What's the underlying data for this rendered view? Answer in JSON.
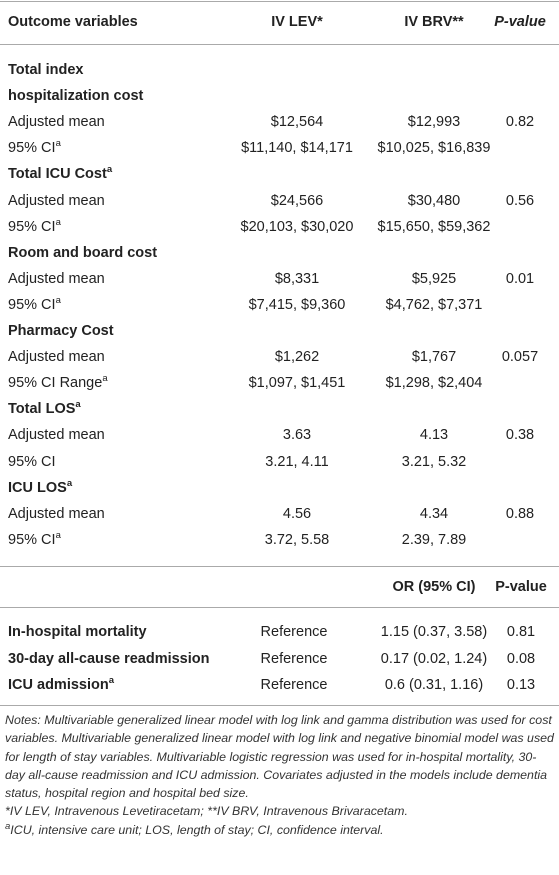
{
  "table": {
    "header": [
      "Outcome variables",
      "IV LEV*",
      "IV BRV**",
      "P-value"
    ],
    "sections": [
      {
        "title": "Total index hospitalization cost",
        "rows": [
          {
            "label": "Adjusted mean",
            "values": [
              "$12,564",
              "$12,993"
            ],
            "p": "0.82"
          },
          {
            "label": "95% CI",
            "label_sup": "a",
            "values": [
              "$11,140, $14,171",
              "$10,025, $16,839"
            ]
          }
        ]
      },
      {
        "title": "Total ICU Cost",
        "title_sup": "a",
        "rows": [
          {
            "label": "Adjusted mean",
            "values": [
              "$24,566",
              "$30,480"
            ],
            "p": "0.56"
          },
          {
            "label": "95% CI",
            "label_sup": "a",
            "values": [
              "$20,103, $30,020",
              "$15,650, $59,362"
            ]
          }
        ]
      },
      {
        "title": "Room and board cost",
        "rows": [
          {
            "label": "Adjusted mean",
            "values": [
              "$8,331",
              "$5,925"
            ],
            "p": "0.01"
          },
          {
            "label": "95% CI",
            "label_sup": "a",
            "values": [
              "$7,415, $9,360",
              "$4,762, $7,371"
            ]
          }
        ]
      },
      {
        "title": "Pharmacy Cost",
        "rows": [
          {
            "label": "Adjusted mean",
            "values": [
              "$1,262",
              "$1,767"
            ],
            "p": "0.057"
          },
          {
            "label": "95% CI Range",
            "label_sup": "a",
            "values": [
              "$1,097, $1,451",
              "$1,298, $2,404"
            ]
          }
        ]
      },
      {
        "title": "Total LOS",
        "title_sup": "a",
        "rows": [
          {
            "label": "Adjusted mean",
            "values": [
              "3.63",
              "4.13"
            ],
            "p": "0.38"
          },
          {
            "label": "95% CI",
            "values": [
              "3.21, 4.11",
              "3.21, 5.32"
            ]
          }
        ]
      },
      {
        "title": "ICU LOS",
        "title_sup": "a",
        "rows": [
          {
            "label": "Adjusted mean",
            "values": [
              "4.56",
              "4.34"
            ],
            "p": "0.88"
          },
          {
            "label": "95% CI",
            "label_sup": "a",
            "values": [
              "3.72, 5.58",
              "2.39, 7.89"
            ]
          }
        ]
      }
    ],
    "header2": [
      "OR (95% CI)",
      "P-value"
    ],
    "rows2": [
      {
        "label": "In-hospital mortality",
        "ref": "Reference",
        "or": "1.15 (0.37, 3.58)",
        "p": "0.81"
      },
      {
        "label": "30-day all-cause readmission",
        "ref": "Reference",
        "or": "0.17 (0.02, 1.24)",
        "p": "0.08"
      },
      {
        "label": "ICU admission",
        "label_sup": "a",
        "ref": "Reference",
        "or": "0.6 (0.31, 1.16)",
        "p": "0.13"
      }
    ]
  },
  "notes": {
    "main": "Notes: Multivariable generalized linear model with log link and gamma distribution was used for cost variables. Multivariable generalized linear model with log link and negative binomial model was used for length of stay variables. Multivariable logistic regression was used for in-hospital mortality, 30-day all-cause readmission and ICU admission. Covariates adjusted in the models include dementia status, hospital region and hospital bed size.",
    "abbrev": "*IV LEV, Intravenous Levetiracetam; **IV BRV, Intravenous Brivaracetam.",
    "footnote_sup": "a",
    "footnote": "ICU, intensive care unit; LOS, length of stay; CI, confidence interval."
  }
}
